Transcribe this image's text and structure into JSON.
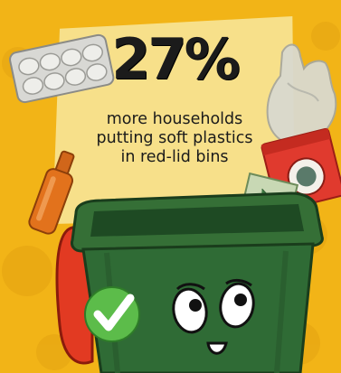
{
  "headline": "27%",
  "subtext": {
    "line1": "more households",
    "line2": "putting soft plastics",
    "line3": "in red-lid bins"
  },
  "colors": {
    "background": "#f2b417",
    "panel": "#f7e08a",
    "bin_body": "#2f6b35",
    "bin_lid": "#e23a22",
    "check": "#4caf3f",
    "text": "#1b1b1b"
  },
  "icons": [
    "egg-carton-icon",
    "glass-bottle-icon",
    "plastic-bag-icon",
    "chip-packet-icon",
    "snack-wrapper-icon",
    "wheelie-bin-icon",
    "check-mark-icon",
    "cartoon-face-icon"
  ]
}
